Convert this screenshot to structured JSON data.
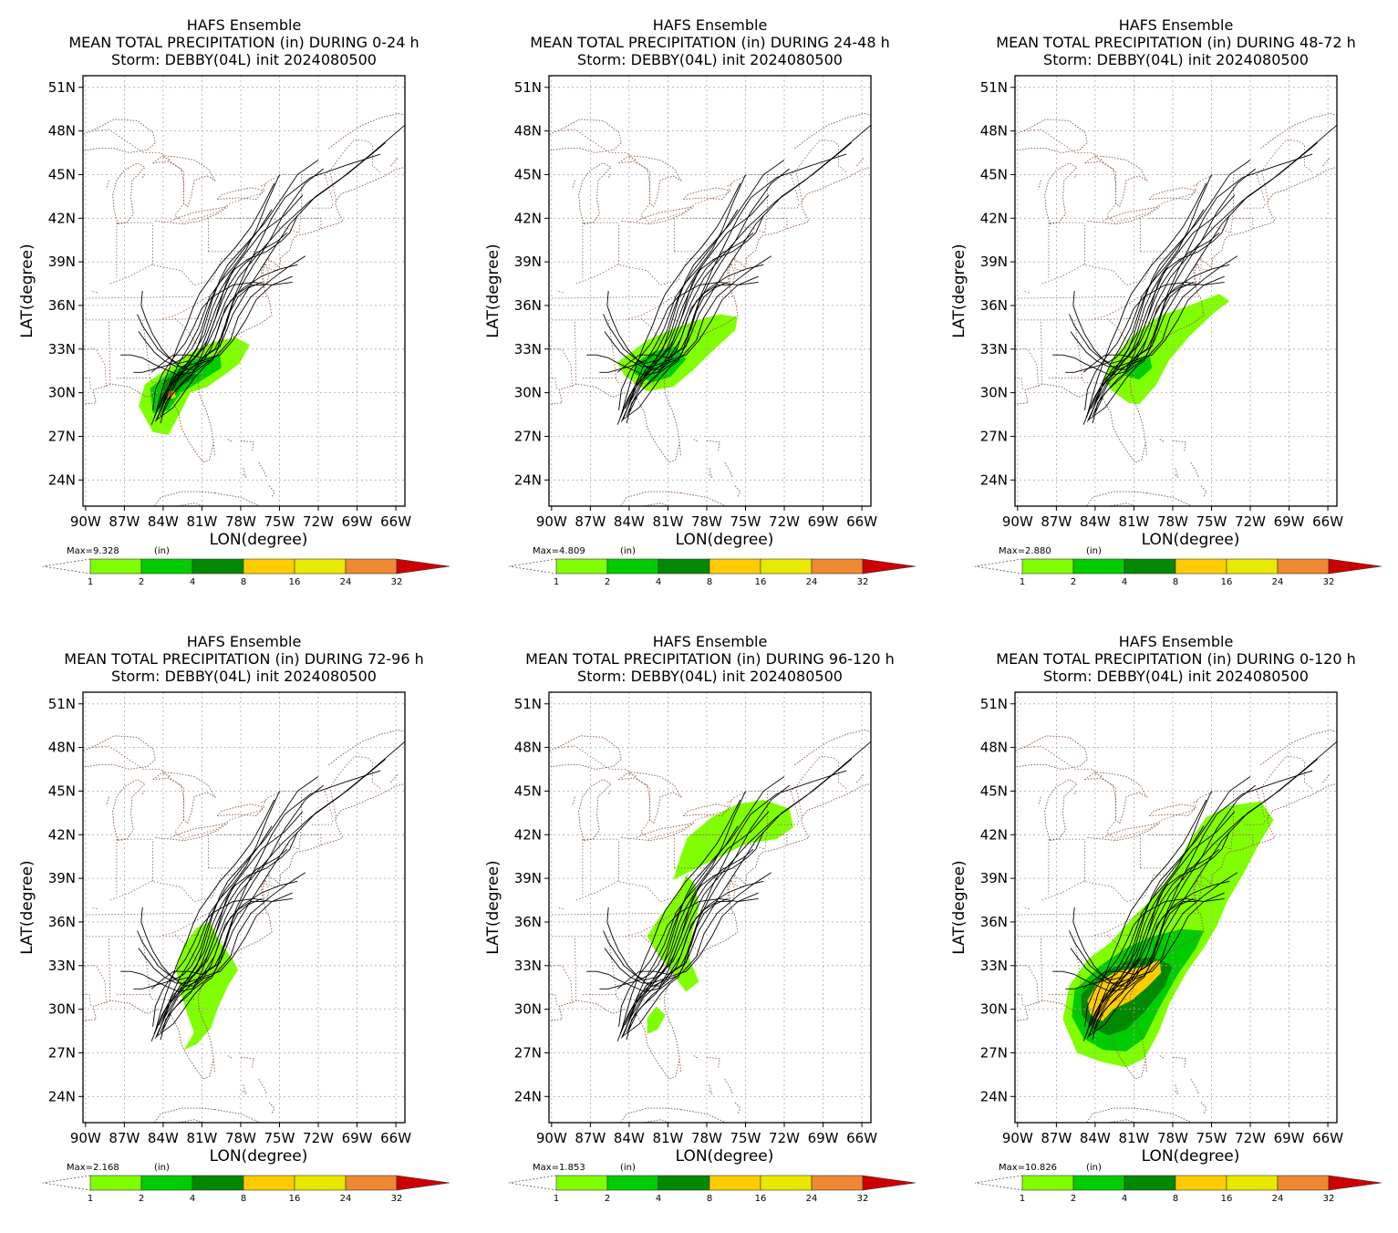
{
  "panel_titles": {
    "line1": "HAFS Ensemble",
    "line3": "Storm: DEBBY(04L) init 2024080500"
  },
  "axes": {
    "xlabel": "LON(degree)",
    "ylabel": "LAT(degree)",
    "x_ticks": [
      "90W",
      "87W",
      "84W",
      "81W",
      "78W",
      "75W",
      "72W",
      "69W",
      "66W"
    ],
    "y_ticks": [
      "24N",
      "27N",
      "30N",
      "33N",
      "36N",
      "39N",
      "42N",
      "45N",
      "48N",
      "51N"
    ],
    "x_tick_values": [
      -90,
      -87,
      -84,
      -81,
      -78,
      -75,
      -72,
      -69,
      -66
    ],
    "y_tick_values": [
      24,
      27,
      30,
      33,
      36,
      39,
      42,
      45,
      48,
      51
    ],
    "xlim": [
      -90.2,
      -65.3
    ],
    "ylim": [
      22.2,
      51.8
    ]
  },
  "colorbar": {
    "unit": "(in)",
    "levels": [
      "1",
      "2",
      "4",
      "8",
      "16",
      "24",
      "32"
    ],
    "colors": [
      "#80ff00",
      "#00cc00",
      "#008800",
      "#ffcc00",
      "#e8e800",
      "#ee8833",
      "#cc0000"
    ]
  },
  "chart_data": [
    {
      "type": "heatmap",
      "title": "MEAN TOTAL PRECIPITATION (in) DURING  0-24 h",
      "max_label": "Max=9.328",
      "max": 9.328,
      "rain_areas": [
        {
          "level": 1,
          "polygon": [
            [
              -84.8,
              27.3
            ],
            [
              -83.6,
              27.1
            ],
            [
              -82.8,
              28.4
            ],
            [
              -81.9,
              30.0
            ],
            [
              -80.6,
              30.4
            ],
            [
              -79.3,
              31.2
            ],
            [
              -78.1,
              32.0
            ],
            [
              -77.3,
              33.3
            ],
            [
              -78.4,
              33.8
            ],
            [
              -80.0,
              33.5
            ],
            [
              -81.6,
              32.9
            ],
            [
              -83.4,
              31.8
            ],
            [
              -85.4,
              30.6
            ],
            [
              -85.9,
              29.1
            ]
          ]
        },
        {
          "level": 2,
          "polygon": [
            [
              -84.8,
              28.6
            ],
            [
              -83.6,
              28.8
            ],
            [
              -82.6,
              30.0
            ],
            [
              -81.1,
              30.8
            ],
            [
              -79.5,
              31.7
            ],
            [
              -79.6,
              32.6
            ],
            [
              -81.6,
              32.3
            ],
            [
              -83.6,
              31.3
            ],
            [
              -85.0,
              30.3
            ]
          ]
        },
        {
          "level": 4,
          "polygon": [
            [
              -84.3,
              29.4
            ],
            [
              -83.3,
              29.6
            ],
            [
              -82.5,
              30.5
            ],
            [
              -81.2,
              31.2
            ],
            [
              -82.6,
              31.5
            ],
            [
              -84.0,
              30.8
            ]
          ]
        },
        {
          "level": 8,
          "polygon": [
            [
              -83.6,
              29.5
            ],
            [
              -83.0,
              29.7
            ],
            [
              -83.2,
              30.2
            ],
            [
              -83.8,
              30.0
            ]
          ]
        }
      ]
    },
    {
      "type": "heatmap",
      "title": "MEAN TOTAL PRECIPITATION (in) DURING 24-48 h",
      "max_label": "Max=4.809",
      "max": 4.809,
      "rain_areas": [
        {
          "level": 1,
          "polygon": [
            [
              -84.4,
              31.2
            ],
            [
              -82.6,
              30.1
            ],
            [
              -80.6,
              30.4
            ],
            [
              -79.0,
              31.6
            ],
            [
              -77.4,
              33.0
            ],
            [
              -75.8,
              34.3
            ],
            [
              -75.6,
              35.2
            ],
            [
              -77.0,
              35.4
            ],
            [
              -78.7,
              35.0
            ],
            [
              -80.6,
              34.4
            ],
            [
              -82.6,
              33.6
            ],
            [
              -84.9,
              32.1
            ]
          ]
        },
        {
          "level": 2,
          "polygon": [
            [
              -83.6,
              31.3
            ],
            [
              -82.2,
              30.7
            ],
            [
              -80.8,
              31.1
            ],
            [
              -79.6,
              32.3
            ],
            [
              -80.4,
              33.2
            ],
            [
              -82.2,
              32.8
            ],
            [
              -83.6,
              32.0
            ]
          ]
        }
      ]
    },
    {
      "type": "heatmap",
      "title": "MEAN TOTAL PRECIPITATION (in) DURING 48-72 h",
      "max_label": "Max=2.880",
      "max": 2.88,
      "rain_areas": [
        {
          "level": 1,
          "polygon": [
            [
              -82.8,
              30.2
            ],
            [
              -81.4,
              29.3
            ],
            [
              -80.6,
              29.2
            ],
            [
              -79.3,
              30.5
            ],
            [
              -78.3,
              32.2
            ],
            [
              -76.8,
              33.8
            ],
            [
              -74.8,
              35.5
            ],
            [
              -73.6,
              36.3
            ],
            [
              -74.4,
              36.8
            ],
            [
              -77.0,
              35.9
            ],
            [
              -79.0,
              35.3
            ],
            [
              -81.0,
              34.0
            ],
            [
              -82.6,
              32.4
            ],
            [
              -83.3,
              31.0
            ]
          ]
        },
        {
          "level": 2,
          "polygon": [
            [
              -81.8,
              31.2
            ],
            [
              -80.6,
              30.9
            ],
            [
              -79.6,
              31.7
            ],
            [
              -79.8,
              32.6
            ],
            [
              -81.2,
              32.3
            ]
          ]
        }
      ]
    },
    {
      "type": "heatmap",
      "title": "MEAN TOTAL PRECIPITATION (in) DURING 72-96 h",
      "max_label": "Max=2.168",
      "max": 2.168,
      "rain_areas": [
        {
          "level": 1,
          "polygon": [
            [
              -82.4,
              27.2
            ],
            [
              -81.4,
              27.6
            ],
            [
              -80.3,
              28.7
            ],
            [
              -79.8,
              30.0
            ],
            [
              -79.0,
              31.6
            ],
            [
              -78.2,
              32.7
            ],
            [
              -78.6,
              33.4
            ],
            [
              -79.6,
              34.6
            ],
            [
              -80.4,
              36.0
            ],
            [
              -81.4,
              35.6
            ],
            [
              -82.4,
              34.4
            ],
            [
              -83.0,
              32.8
            ],
            [
              -82.6,
              31.0
            ],
            [
              -82.1,
              29.6
            ],
            [
              -81.6,
              28.4
            ]
          ]
        }
      ]
    },
    {
      "type": "heatmap",
      "title": "MEAN TOTAL PRECIPITATION (in) DURING 96-120 h",
      "max_label": "Max=1.853",
      "max": 1.853,
      "rain_areas": [
        {
          "level": 1,
          "polygon": [
            [
              -79.5,
              41.8
            ],
            [
              -77.6,
              43.2
            ],
            [
              -75.6,
              44.1
            ],
            [
              -73.6,
              44.4
            ],
            [
              -71.6,
              43.8
            ],
            [
              -71.3,
              42.5
            ],
            [
              -72.6,
              41.7
            ],
            [
              -74.9,
              41.4
            ],
            [
              -77.4,
              40.3
            ],
            [
              -79.0,
              39.6
            ],
            [
              -80.6,
              38.9
            ],
            [
              -80.0,
              40.6
            ]
          ]
        },
        {
          "level": 1,
          "polygon": [
            [
              -82.6,
              35.0
            ],
            [
              -81.6,
              36.4
            ],
            [
              -80.2,
              38.0
            ],
            [
              -79.6,
              39.2
            ],
            [
              -78.9,
              38.6
            ],
            [
              -78.6,
              37.0
            ],
            [
              -79.1,
              35.4
            ],
            [
              -79.4,
              33.6
            ],
            [
              -78.6,
              31.9
            ],
            [
              -79.6,
              31.2
            ],
            [
              -80.6,
              32.4
            ],
            [
              -81.6,
              33.6
            ]
          ]
        },
        {
          "level": 1,
          "polygon": [
            [
              -82.6,
              28.3
            ],
            [
              -81.8,
              28.6
            ],
            [
              -81.2,
              29.6
            ],
            [
              -81.9,
              30.2
            ],
            [
              -82.6,
              29.4
            ]
          ]
        }
      ]
    },
    {
      "type": "heatmap",
      "title": "MEAN TOTAL PRECIPITATION (in) DURING 0-120 h",
      "max_label": "Max=10.826",
      "max": 10.826,
      "rain_areas": [
        {
          "level": 1,
          "polygon": [
            [
              -85.4,
              27.0
            ],
            [
              -83.6,
              26.4
            ],
            [
              -81.6,
              26.0
            ],
            [
              -80.2,
              26.6
            ],
            [
              -79.1,
              28.4
            ],
            [
              -78.2,
              30.5
            ],
            [
              -76.9,
              32.6
            ],
            [
              -75.6,
              34.2
            ],
            [
              -74.6,
              35.7
            ],
            [
              -73.8,
              37.4
            ],
            [
              -72.6,
              39.2
            ],
            [
              -71.3,
              41.4
            ],
            [
              -70.2,
              43.0
            ],
            [
              -71.2,
              44.3
            ],
            [
              -73.6,
              44.0
            ],
            [
              -75.4,
              43.2
            ],
            [
              -76.8,
              41.4
            ],
            [
              -78.0,
              39.4
            ],
            [
              -79.6,
              37.6
            ],
            [
              -81.2,
              36.2
            ],
            [
              -82.8,
              34.6
            ],
            [
              -84.6,
              33.4
            ],
            [
              -86.0,
              31.6
            ],
            [
              -86.5,
              29.3
            ]
          ]
        },
        {
          "level": 2,
          "polygon": [
            [
              -84.9,
              28.0
            ],
            [
              -83.4,
              27.2
            ],
            [
              -81.6,
              27.1
            ],
            [
              -80.2,
              28.0
            ],
            [
              -79.1,
              30.0
            ],
            [
              -77.6,
              32.4
            ],
            [
              -76.2,
              34.2
            ],
            [
              -75.6,
              35.4
            ],
            [
              -77.4,
              35.5
            ],
            [
              -79.6,
              35.0
            ],
            [
              -81.6,
              34.2
            ],
            [
              -83.6,
              33.0
            ],
            [
              -85.6,
              31.3
            ],
            [
              -85.8,
              29.5
            ]
          ]
        },
        {
          "level": 4,
          "polygon": [
            [
              -84.4,
              28.8
            ],
            [
              -83.0,
              28.2
            ],
            [
              -81.6,
              28.6
            ],
            [
              -80.2,
              29.8
            ],
            [
              -78.6,
              31.6
            ],
            [
              -78.0,
              33.0
            ],
            [
              -79.6,
              33.6
            ],
            [
              -81.6,
              33.3
            ],
            [
              -83.6,
              32.4
            ],
            [
              -85.1,
              31.0
            ],
            [
              -85.0,
              29.6
            ]
          ]
        },
        {
          "level": 8,
          "polygon": [
            [
              -84.0,
              29.3
            ],
            [
              -83.4,
              29.2
            ],
            [
              -82.6,
              30.0
            ],
            [
              -81.2,
              30.6
            ],
            [
              -80.0,
              31.5
            ],
            [
              -78.9,
              32.5
            ],
            [
              -79.0,
              33.4
            ],
            [
              -80.4,
              32.9
            ],
            [
              -82.4,
              32.6
            ],
            [
              -83.8,
              31.8
            ],
            [
              -84.6,
              30.6
            ],
            [
              -84.4,
              29.7
            ]
          ]
        }
      ]
    }
  ]
}
